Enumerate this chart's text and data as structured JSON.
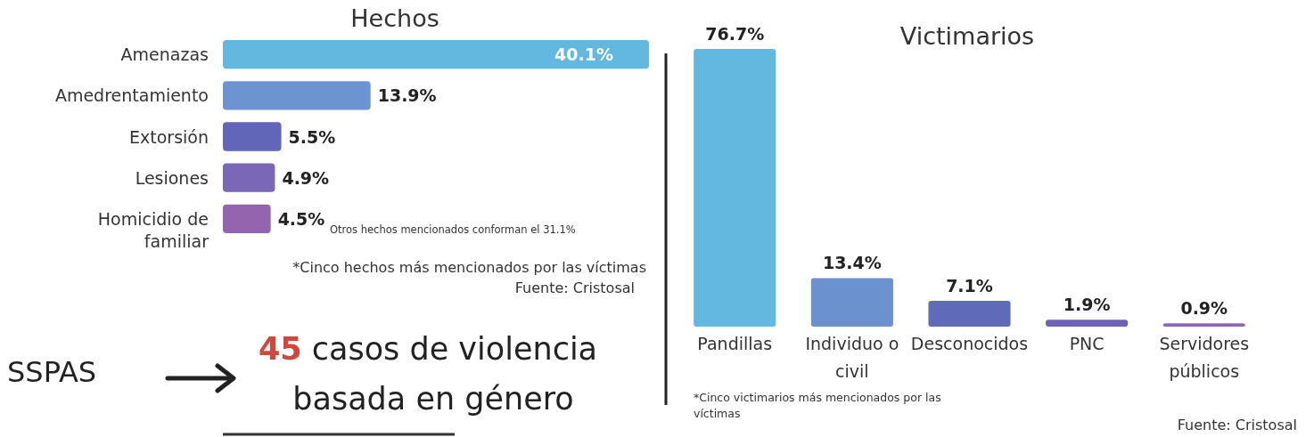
{
  "chart_data": [
    {
      "type": "bar",
      "orientation": "horizontal",
      "title": "Hechos",
      "categories": [
        "Amenazas",
        "Amedrentamiento",
        "Extorsión",
        "Lesiones",
        "Homicidio de familiar"
      ],
      "values": [
        40.1,
        13.9,
        5.5,
        4.9,
        4.5
      ],
      "value_labels": [
        "40.1%",
        "13.9%",
        "5.5%",
        "4.9%",
        "4.5%"
      ],
      "colors": [
        "#62b8de",
        "#6b94d0",
        "#6166b8",
        "#7a67b5",
        "#9464ae"
      ],
      "annotations": [
        "Otros hechos mencionados conforman el 31.1%",
        "*Cinco hechos más mencionados por las víctimas",
        "Fuente: Cristosal"
      ]
    },
    {
      "type": "bar",
      "title": "Victimarios",
      "categories": [
        "Pandillas",
        "Individuo o civil",
        "Desconocidos",
        "PNC",
        "Servidores públicos"
      ],
      "values": [
        76.7,
        13.4,
        7.1,
        1.9,
        0.9
      ],
      "value_labels": [
        "76.7%",
        "13.4%",
        "7.1%",
        "1.9%",
        "0.9%"
      ],
      "colors": [
        "#62b8de",
        "#6b91cf",
        "#5f6bb8",
        "#6c62b8",
        "#8e66b8"
      ],
      "annotations": [
        "*Cinco victimarios más mencionados por las víctimas",
        "Fuente: Cristosal"
      ]
    },
    {
      "type": "other",
      "annotations": [
        "SSPAS",
        "45",
        "casos de violencia basada en género"
      ]
    }
  ]
}
